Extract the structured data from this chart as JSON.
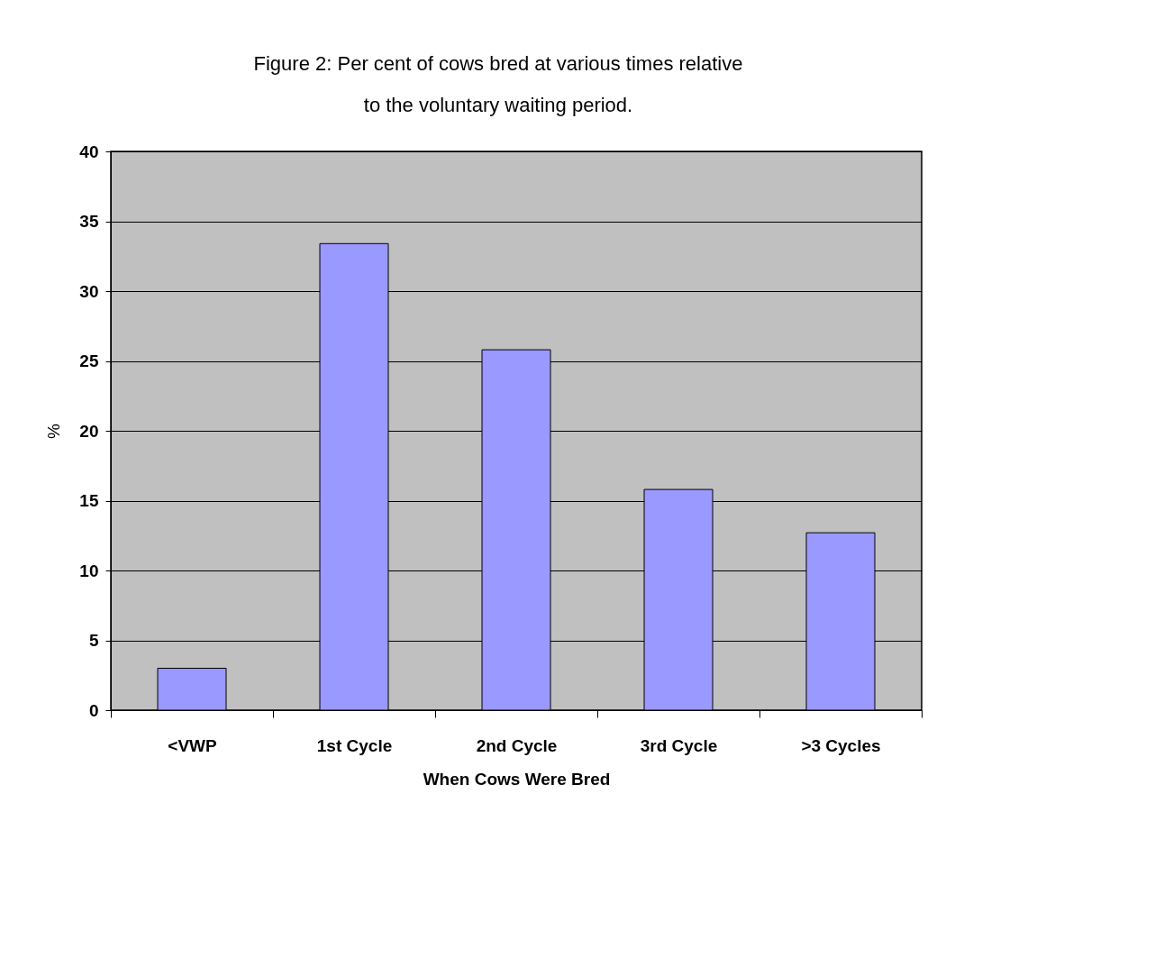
{
  "chart_data": {
    "type": "bar",
    "title": "Figure 2: Per cent of cows bred at various times relative to the voluntary waiting period.",
    "xlabel": "When Cows Were Bred",
    "ylabel": "%",
    "categories": [
      "<VWP",
      "1st Cycle",
      "2nd Cycle",
      "3rd Cycle",
      ">3 Cycles"
    ],
    "values": [
      3,
      33.4,
      25.8,
      15.8,
      12.7
    ],
    "color": "#9999ff",
    "ylim": [
      0,
      40
    ],
    "yticks": [
      0,
      5,
      10,
      15,
      20,
      25,
      30,
      35,
      40
    ],
    "grid": "y"
  }
}
